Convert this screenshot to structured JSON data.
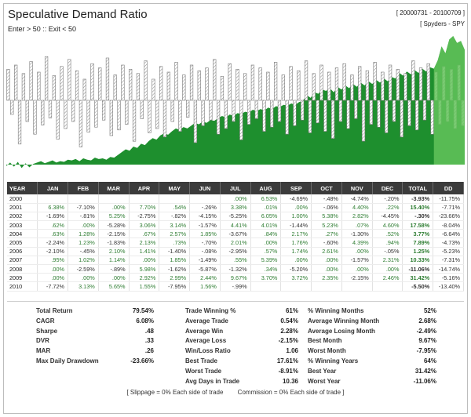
{
  "header": {
    "title": "Speculative Demand Ratio",
    "subtitle": "Enter > 50 :: Exit < 50",
    "date_range": "[ 20000731 - 20100709 ]",
    "instrument": "[ Spyders - SPY"
  },
  "chart_data": {
    "type": "area",
    "title": "Speculative Demand Ratio",
    "series": [
      {
        "kind": "equity-area",
        "color": "#1e8f2e",
        "values": [
          -2,
          3,
          -3,
          4,
          -5,
          2,
          -4,
          1,
          3,
          5,
          2,
          4,
          6,
          3,
          5,
          4,
          7,
          6,
          8,
          5,
          9,
          7,
          6,
          10,
          8,
          9,
          7,
          11,
          10,
          14,
          18,
          22,
          20,
          26,
          24,
          30,
          28,
          34,
          38,
          36,
          42,
          45,
          43,
          48,
          52,
          50,
          54,
          52,
          56,
          60,
          58,
          62,
          60,
          64,
          63,
          67,
          70,
          68,
          72,
          70,
          74,
          73,
          76,
          75,
          79,
          77,
          80,
          78,
          82,
          80,
          84,
          83,
          86,
          85,
          88,
          86,
          90,
          92,
          100,
          96,
          104,
          102,
          108,
          106,
          110,
          104,
          112,
          108,
          114,
          110,
          116,
          112,
          118,
          114,
          120,
          116,
          122,
          118,
          124,
          120,
          126,
          124,
          132,
          128,
          134,
          130,
          136,
          132,
          138,
          134,
          140,
          138,
          150,
          170,
          160,
          180,
          185,
          175,
          178,
          165
        ]
      },
      {
        "kind": "monthly-bars",
        "color": "#7a7a7a",
        "values": [
          44,
          -20,
          50,
          -62,
          38,
          -30,
          55,
          -48,
          40,
          -35,
          62,
          -25,
          35,
          -55,
          48,
          -40,
          58,
          -30,
          42,
          -66,
          30,
          -45,
          52,
          -38,
          46,
          -28,
          60,
          -50,
          36,
          -42,
          50,
          -34,
          44,
          -58,
          38,
          -26,
          56,
          -46,
          30,
          -40,
          48,
          -52,
          40,
          -30,
          54,
          -44,
          36,
          -24,
          50,
          -60,
          42,
          -36,
          46,
          -28,
          58,
          -48,
          34,
          -40,
          52,
          -30,
          44,
          -56,
          38,
          -34,
          50,
          -26,
          46,
          -44,
          40,
          -38,
          54,
          -30,
          36,
          -48,
          48,
          -36,
          42,
          -28,
          56,
          -46,
          38,
          -32,
          50,
          -44,
          40,
          -54,
          46,
          -30,
          52,
          -40,
          36,
          -26,
          48,
          -58,
          42,
          -34,
          54,
          -38,
          40,
          -46,
          50,
          -30,
          44,
          -52,
          38,
          -36,
          56,
          -42,
          46,
          -28,
          52,
          -48,
          40,
          -34,
          48,
          -30,
          44,
          -40,
          50,
          -36
        ]
      }
    ]
  },
  "table": {
    "headers": [
      "YEAR",
      "JAN",
      "FEB",
      "MAR",
      "APR",
      "MAY",
      "JUN",
      "JUL",
      "AUG",
      "SEP",
      "OCT",
      "NOV",
      "DEC",
      "TOTAL",
      "DD"
    ],
    "rows": [
      [
        "2000",
        "",
        "",
        "",
        "",
        "",
        "",
        ".00%",
        "6.53%",
        "-4.69%",
        "-.48%",
        "-4.74%",
        "-.20%",
        "-3.93%",
        "-11.75%"
      ],
      [
        "2001",
        "6.38%",
        "-7.10%",
        ".00%",
        "7.70%",
        ".54%",
        "-.26%",
        "3.38%",
        ".01%",
        ".00%",
        "-.06%",
        "4.40%",
        ".22%",
        "15.40%",
        "-7.71%"
      ],
      [
        "2002",
        "-1.69%",
        "-.81%",
        "5.25%",
        "-2.75%",
        "-.82%",
        "-4.15%",
        "-5.25%",
        "6.05%",
        "1.00%",
        "5.38%",
        "2.82%",
        "-4.45%",
        "-.30%",
        "-23.66%"
      ],
      [
        "2003",
        ".62%",
        ".00%",
        "-5.28%",
        "3.06%",
        "3.14%",
        "-1.57%",
        "4.41%",
        "4.01%",
        "-1.44%",
        "5.23%",
        ".07%",
        "4.60%",
        "17.58%",
        "-8.04%"
      ],
      [
        "2004",
        ".63%",
        "1.28%",
        "-2.15%",
        ".67%",
        "2.57%",
        "1.85%",
        "-3.67%",
        ".84%",
        "2.17%",
        ".27%",
        "-1.30%",
        ".52%",
        "3.77%",
        "-6.64%"
      ],
      [
        "2005",
        "-2.24%",
        "1.23%",
        "-1.83%",
        "2.13%",
        ".73%",
        "-.70%",
        "2.01%",
        ".00%",
        "1.76%",
        "-.60%",
        "4.39%",
        ".94%",
        "7.89%",
        "-4.73%"
      ],
      [
        "2006",
        "-2.10%",
        "-.45%",
        "2.10%",
        "1.41%",
        "-1.40%",
        "-.08%",
        "-2.95%",
        ".57%",
        "1.74%",
        "2.61%",
        ".00%",
        "-.05%",
        "1.25%",
        "-5.23%"
      ],
      [
        "2007",
        ".95%",
        "1.02%",
        "1.14%",
        ".00%",
        "1.85%",
        "-1.49%",
        ".55%",
        "5.39%",
        ".00%",
        ".00%",
        "-1.57%",
        "2.31%",
        "10.33%",
        "-7.31%"
      ],
      [
        "2008",
        ".00%",
        "-2.59%",
        "-.89%",
        "5.98%",
        "-1.62%",
        "-5.87%",
        "-1.32%",
        ".34%",
        "-5.20%",
        ".00%",
        ".00%",
        ".00%",
        "-11.06%",
        "-14.74%"
      ],
      [
        "2009",
        ".00%",
        ".00%",
        ".00%",
        "2.92%",
        "2.99%",
        "2.44%",
        "9.67%",
        "3.70%",
        "3.72%",
        "2.35%",
        "-2.15%",
        "2.46%",
        "31.42%",
        "-5.16%"
      ],
      [
        "2010",
        "-7.72%",
        "3.13%",
        "5.65%",
        "1.55%",
        "-7.95%",
        "1.56%",
        "-.99%",
        "",
        "",
        "",
        "",
        "",
        "-5.50%",
        "-13.40%"
      ]
    ]
  },
  "stats": {
    "col1": [
      {
        "label": "Total Return",
        "value": "79.54%"
      },
      {
        "label": "CAGR",
        "value": "6.08%"
      },
      {
        "label": "Sharpe",
        "value": ".48"
      },
      {
        "label": "DVR",
        "value": ".33"
      },
      {
        "label": "MAR",
        "value": ".26"
      },
      {
        "label": "Max Daily Drawdown",
        "value": "-23.66%"
      }
    ],
    "col2": [
      {
        "label": "Trade Winning %",
        "value": "61%"
      },
      {
        "label": "Average Trade",
        "value": "0.54%"
      },
      {
        "label": "Average Win",
        "value": "2.28%"
      },
      {
        "label": "Average Loss",
        "value": "-2.15%"
      },
      {
        "label": "Win/Loss Ratio",
        "value": "1.06"
      },
      {
        "label": "Best Trade",
        "value": "17.61%"
      },
      {
        "label": "Worst Trade",
        "value": "-8.91%"
      },
      {
        "label": "Avg Days in Trade",
        "value": "10.36"
      }
    ],
    "col3": [
      {
        "label": "% Winning Months",
        "value": "52%"
      },
      {
        "label": "Average Winning Month",
        "value": "2.68%"
      },
      {
        "label": "Average Losing Month",
        "value": "-2.49%"
      },
      {
        "label": "Best Month",
        "value": "9.67%"
      },
      {
        "label": "Worst Month",
        "value": "-7.95%"
      },
      {
        "label": "% Winning Years",
        "value": "64%"
      },
      {
        "label": "Best Year",
        "value": "31.42%"
      },
      {
        "label": "Worst Year",
        "value": "-11.06%"
      }
    ]
  },
  "footer": {
    "slippage": "[ Slippage = 0% Each side of trade",
    "commission": "Commission = 0% Each side of trade ]"
  }
}
